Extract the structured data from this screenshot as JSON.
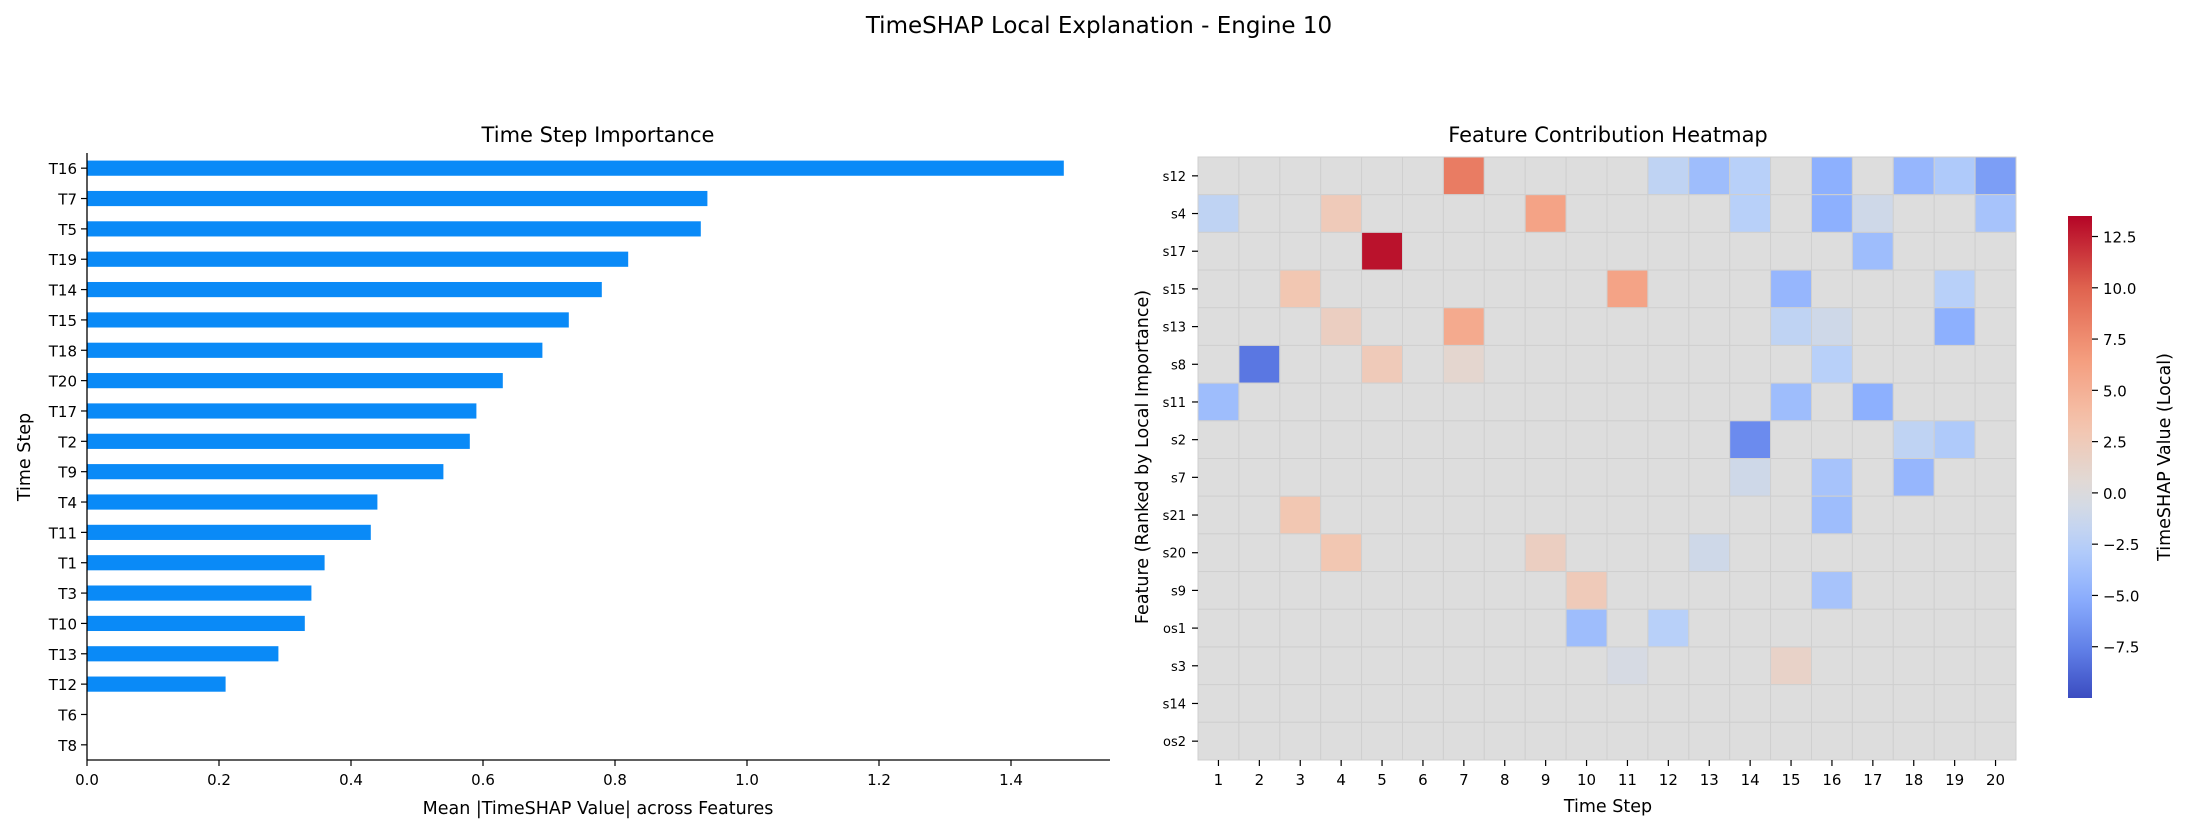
{
  "figure_title": "TimeSHAP Local Explanation - Engine 10",
  "chart_data": [
    {
      "type": "bar",
      "orientation": "horizontal",
      "title": "Time Step Importance",
      "xlabel": "Mean |TimeSHAP Value| across Features",
      "ylabel": "Time Step",
      "xlim": [
        0,
        1.55
      ],
      "xticks": [
        "0.0",
        "0.2",
        "0.4",
        "0.6",
        "0.8",
        "1.0",
        "1.2",
        "1.4"
      ],
      "categories": [
        "T16",
        "T7",
        "T5",
        "T19",
        "T14",
        "T15",
        "T18",
        "T20",
        "T17",
        "T2",
        "T9",
        "T4",
        "T11",
        "T1",
        "T3",
        "T10",
        "T13",
        "T12",
        "T6",
        "T8"
      ],
      "values": [
        1.48,
        0.94,
        0.93,
        0.82,
        0.78,
        0.73,
        0.69,
        0.63,
        0.59,
        0.58,
        0.54,
        0.44,
        0.43,
        0.36,
        0.34,
        0.33,
        0.29,
        0.21,
        0.0,
        0.0
      ],
      "bar_color": "#0a8af7",
      "grid": false
    },
    {
      "type": "heatmap",
      "title": "Feature Contribution Heatmap",
      "xlabel": "Time Step",
      "ylabel": "Feature (Ranked by Local Importance)",
      "colorbar_label": "TimeSHAP Value (Local)",
      "colormap": "coolwarm",
      "vmin": -10,
      "vmax": 13.5,
      "colorbar_ticks": [
        "12.5",
        "10.0",
        "7.5",
        "5.0",
        "2.5",
        "0.0",
        "−2.5",
        "−5.0",
        "−7.5"
      ],
      "colorbar_tick_values": [
        12.5,
        10,
        7.5,
        5,
        2.5,
        0,
        -2.5,
        -5,
        -7.5
      ],
      "x": [
        "1",
        "2",
        "3",
        "4",
        "5",
        "6",
        "7",
        "8",
        "9",
        "10",
        "11",
        "12",
        "13",
        "14",
        "15",
        "16",
        "17",
        "18",
        "19",
        "20"
      ],
      "y": [
        "s12",
        "s4",
        "s17",
        "s15",
        "s13",
        "s8",
        "s11",
        "s2",
        "s7",
        "s21",
        "s20",
        "s9",
        "os1",
        "s3",
        "s14",
        "os2"
      ],
      "values": [
        [
          0,
          0,
          0,
          0,
          0,
          0,
          8.5,
          0,
          0,
          0,
          0,
          -2,
          -4,
          -2.5,
          0,
          -5,
          0,
          -4.5,
          -3,
          -6
        ],
        [
          -2,
          0,
          0,
          2.5,
          0,
          0,
          0,
          0,
          6,
          0,
          0,
          0,
          0,
          -2.5,
          0,
          -5,
          -1,
          0,
          0,
          -3.5
        ],
        [
          0,
          0,
          0,
          0,
          13,
          0,
          0,
          0,
          0,
          0,
          0,
          0,
          0,
          0,
          0,
          0,
          -4,
          0,
          0,
          0
        ],
        [
          0,
          0,
          3,
          0,
          0,
          0,
          0,
          0,
          0,
          0,
          6,
          0,
          0,
          0,
          -4.5,
          0,
          0,
          0,
          -2.5,
          0
        ],
        [
          0,
          0,
          0,
          2,
          0,
          0,
          5.5,
          0,
          0,
          0,
          0,
          0,
          0,
          0,
          -2,
          -1,
          0,
          0,
          -5,
          0
        ],
        [
          0,
          -8,
          0,
          0,
          2.5,
          0,
          1,
          0,
          0,
          0,
          0,
          0,
          0,
          0,
          0,
          -2.5,
          0,
          0,
          0,
          0
        ],
        [
          -4,
          0,
          0,
          0,
          0,
          0,
          0,
          0,
          0,
          0,
          0,
          0,
          0,
          0,
          -4,
          0,
          -5,
          0,
          0,
          0
        ],
        [
          0,
          0,
          0,
          0,
          0,
          0,
          0,
          0,
          0,
          0,
          0,
          0,
          0,
          -7,
          0,
          0,
          0,
          -2,
          -3,
          0
        ],
        [
          0,
          0,
          0,
          0,
          0,
          0,
          0,
          0,
          0,
          0,
          0,
          0,
          0,
          -1,
          0,
          -3.5,
          0,
          -4.5,
          0,
          0
        ],
        [
          0,
          0,
          3,
          0,
          0,
          0,
          0,
          0,
          0,
          0,
          0,
          0,
          0,
          0,
          0,
          -4,
          0,
          0,
          0,
          0
        ],
        [
          0,
          0,
          0,
          3,
          0,
          0,
          0,
          0,
          2,
          0,
          0,
          0,
          -1,
          0,
          0,
          0,
          0,
          0,
          0,
          0
        ],
        [
          0,
          0,
          0,
          0,
          0,
          0,
          0,
          0,
          0,
          2.5,
          0,
          0,
          0,
          0,
          0,
          -3.5,
          0,
          0,
          0,
          0
        ],
        [
          0,
          0,
          0,
          0,
          0,
          0,
          0,
          0,
          0,
          -4,
          0,
          -2.5,
          0,
          0,
          0,
          0,
          0,
          0,
          0,
          0
        ],
        [
          0,
          0,
          0,
          0,
          0,
          0,
          0,
          0,
          0,
          0,
          -0.5,
          0,
          0,
          0,
          1.5,
          0,
          0,
          0,
          0,
          0
        ],
        [
          0,
          0,
          0,
          0,
          0,
          0,
          0,
          0,
          0,
          0,
          0,
          0,
          0,
          0,
          0,
          0,
          0,
          0,
          0,
          0
        ],
        [
          0,
          0,
          0,
          0,
          0,
          0,
          0,
          0,
          0,
          0,
          0,
          0,
          0,
          0,
          0,
          0,
          0,
          0,
          0,
          0
        ]
      ]
    }
  ]
}
